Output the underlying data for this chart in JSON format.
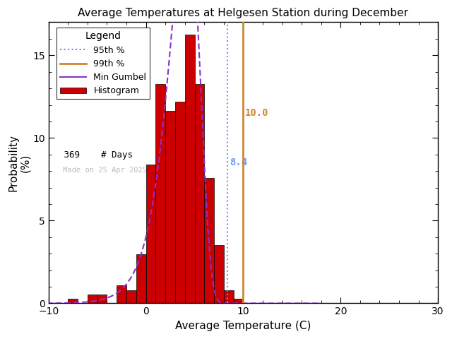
{
  "title": "Average Temperatures at Helgesen Station during December",
  "xlabel": "Average Temperature (C)",
  "ylabel": "Probability\n(%)",
  "xlim": [
    -10,
    30
  ],
  "ylim": [
    0,
    17
  ],
  "yticks": [
    0,
    5,
    10,
    15
  ],
  "xticks": [
    -10,
    0,
    10,
    20,
    30
  ],
  "bin_edges": [
    -9,
    -8,
    -7,
    -6,
    -5,
    -4,
    -3,
    -2,
    -1,
    0,
    1,
    2,
    3,
    4,
    5,
    6,
    7,
    8,
    9,
    10,
    11,
    12
  ],
  "bin_heights": [
    0.0,
    0.27,
    0.0,
    0.54,
    0.54,
    0.0,
    1.08,
    0.81,
    2.98,
    8.4,
    13.28,
    11.65,
    12.19,
    16.26,
    13.28,
    7.59,
    3.52,
    0.81,
    0.27,
    0.0,
    0.0
  ],
  "percentile_95": 8.4,
  "percentile_99": 10.0,
  "n_days": 369,
  "gumbel_mu": 4.2,
  "gumbel_beta": 1.55,
  "bar_color": "#cc0000",
  "bar_edgecolor": "#000000",
  "line_95_color": "#8888ff",
  "line_95_style": "dotted",
  "line_99_color": "#cc8833",
  "line_99_style": "solid",
  "gumbel_color": "#8833cc",
  "label_95_color": "#6699ff",
  "label_99_color": "#cc8833",
  "legend_95_color": "#6688ff",
  "legend_99_color": "#cc8833",
  "legend_title": "Legend",
  "date_label": "Made on 25 Apr 2025",
  "date_label_color": "#bbbbbb",
  "background_color": "#ffffff"
}
